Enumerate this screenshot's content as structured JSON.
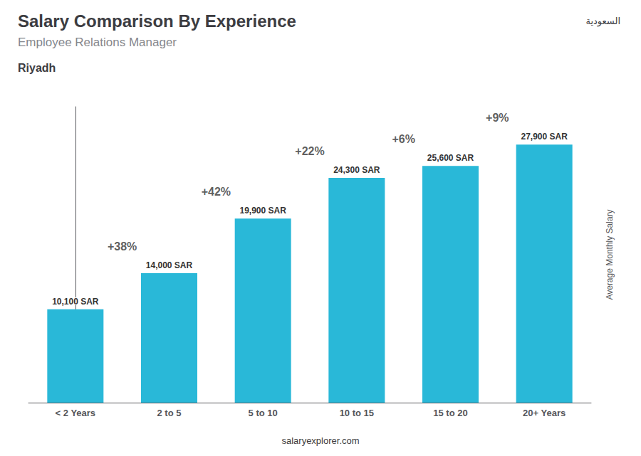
{
  "chart_data": {
    "type": "bar",
    "title": "Salary Comparison By Experience",
    "subtitle": "Employee Relations Manager",
    "city": "Riyadh",
    "ylabel": "Average Monthly Salary",
    "footer": "salaryexplorer.com",
    "flag_text": "السعودية",
    "categories": [
      "< 2 Years",
      "2 to 5",
      "5 to 10",
      "10 to 15",
      "15 to 20",
      "20+ Years"
    ],
    "values": [
      10100,
      14000,
      19900,
      24300,
      25600,
      27900
    ],
    "value_labels": [
      "10,100 SAR",
      "14,000 SAR",
      "19,900 SAR",
      "24,300 SAR",
      "25,600 SAR",
      "27,900 SAR"
    ],
    "data_labels": true,
    "color": "#29b8d8",
    "annotations": [
      "+38%",
      "+42%",
      "+22%",
      "+6%",
      "+9%"
    ],
    "ylim": [
      0,
      32000
    ],
    "grid": false,
    "tick_labels": "x"
  }
}
